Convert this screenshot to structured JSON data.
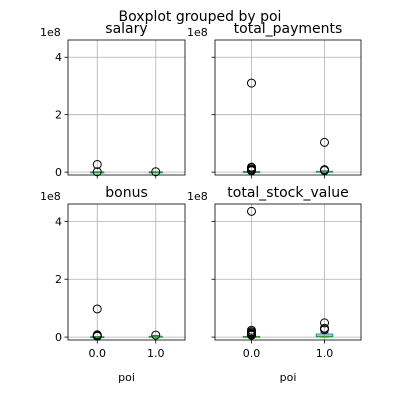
{
  "figure": {
    "title": "Boxplot grouped by poi"
  },
  "colors": {
    "grid": "#b0b0b0",
    "box": "#1f77b4",
    "median": "#2ca02c",
    "flier": "#000000",
    "axes": "#000000"
  },
  "chart_data": [
    {
      "type": "boxplot",
      "title": "salary",
      "xlabel": "",
      "categories": [
        "0.0",
        "1.0"
      ],
      "ylim": [
        -10000000,
        460000000
      ],
      "yticks": [
        0,
        200000000,
        400000000
      ],
      "ytick_labels": [
        "0",
        "2",
        "4"
      ],
      "offset_label": "1e8",
      "show_yticklabels": true,
      "show_xticklabels": false,
      "grid": true,
      "boxes": [
        {
          "category": "0.0",
          "q1": 0,
          "median": 200000,
          "q3": 260000,
          "whislo": 0,
          "whishi": 550000,
          "fliers": [
            1100000,
            26700000
          ]
        },
        {
          "category": "1.0",
          "q1": 220000,
          "median": 270000,
          "q3": 350000,
          "whislo": 150000,
          "whishi": 600000,
          "fliers": [
            1100000
          ]
        }
      ]
    },
    {
      "type": "boxplot",
      "title": "total_payments",
      "xlabel": "",
      "categories": [
        "0.0",
        "1.0"
      ],
      "ylim": [
        -10000000,
        460000000
      ],
      "yticks": [
        0,
        200000000,
        400000000
      ],
      "ytick_labels": [
        "0",
        "2",
        "4"
      ],
      "offset_label": "1e8",
      "show_yticklabels": false,
      "show_xticklabels": false,
      "grid": true,
      "boxes": [
        {
          "category": "0.0",
          "q1": 100000,
          "median": 900000,
          "q3": 1700000,
          "whislo": 0,
          "whishi": 3800000,
          "fliers": [
            5000000,
            8000000,
            11000000,
            15500000,
            17300000,
            309900000
          ]
        },
        {
          "category": "1.0",
          "q1": 1100000,
          "median": 1700000,
          "q3": 2600000,
          "whislo": 90000,
          "whishi": 4600000,
          "fliers": [
            5500000,
            8600000,
            103600000
          ]
        }
      ]
    },
    {
      "type": "boxplot",
      "title": "bonus",
      "xlabel": "poi",
      "categories": [
        "0.0",
        "1.0"
      ],
      "ylim": [
        -10000000,
        460000000
      ],
      "yticks": [
        0,
        200000000,
        400000000
      ],
      "ytick_labels": [
        "0",
        "2",
        "4"
      ],
      "offset_label": "1e8",
      "show_yticklabels": true,
      "show_xticklabels": true,
      "grid": true,
      "boxes": [
        {
          "category": "0.0",
          "q1": 0,
          "median": 300000,
          "q3": 800000,
          "whislo": 0,
          "whishi": 2000000,
          "fliers": [
            3000000,
            4000000,
            5200000,
            8000000,
            97300000
          ]
        },
        {
          "category": "1.0",
          "q1": 700000,
          "median": 1100000,
          "q3": 2700000,
          "whislo": 0,
          "whishi": 5600000,
          "fliers": [
            7000000
          ]
        }
      ]
    },
    {
      "type": "boxplot",
      "title": "total_stock_value",
      "xlabel": "poi",
      "categories": [
        "0.0",
        "1.0"
      ],
      "ylim": [
        -10000000,
        460000000
      ],
      "yticks": [
        0,
        200000000,
        400000000
      ],
      "ytick_labels": [
        "0",
        "2",
        "4"
      ],
      "offset_label": "1e8",
      "show_yticklabels": false,
      "show_xticklabels": true,
      "grid": true,
      "boxes": [
        {
          "category": "0.0",
          "q1": 200000,
          "median": 900000,
          "q3": 2300000,
          "whislo": 0,
          "whishi": 5200000,
          "fliers": [
            6500000,
            9000000,
            11500000,
            15000000,
            19000000,
            23800000,
            434500000
          ]
        },
        {
          "category": "1.0",
          "q1": 1300000,
          "median": 2700000,
          "q3": 10500000,
          "whislo": 0,
          "whishi": 14600000,
          "fliers": [
            26100000,
            30800000,
            49100000
          ]
        }
      ]
    }
  ]
}
